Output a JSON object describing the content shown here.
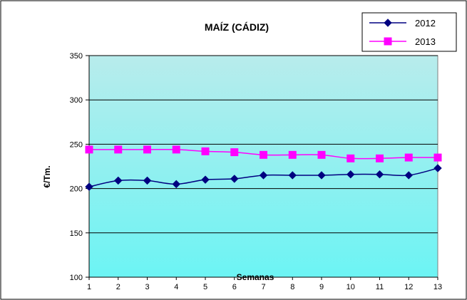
{
  "chart_data": {
    "type": "line",
    "title": "MAÍZ (CÁDIZ)",
    "xlabel": "Semanas",
    "ylabel": "€/Tm.",
    "x": [
      1,
      2,
      3,
      4,
      5,
      6,
      7,
      8,
      9,
      10,
      11,
      12,
      13
    ],
    "ylim": [
      100,
      350
    ],
    "yticks": [
      100,
      150,
      200,
      250,
      300,
      350
    ],
    "grid": true,
    "legend_position": "top-right",
    "series": [
      {
        "name": "2012",
        "color": "#000080",
        "marker": "diamond",
        "values": [
          202,
          209,
          209,
          205,
          210,
          211,
          215,
          215,
          215,
          216,
          216,
          215,
          223
        ]
      },
      {
        "name": "2013",
        "color": "#ff00ff",
        "marker": "square",
        "values": [
          244,
          244,
          244,
          244,
          242,
          241,
          238,
          238,
          238,
          234,
          234,
          235,
          235
        ]
      }
    ]
  },
  "colors": {
    "plot_top": "#b8ecec",
    "plot_bottom": "#6cf4f4",
    "grid": "#000000"
  }
}
